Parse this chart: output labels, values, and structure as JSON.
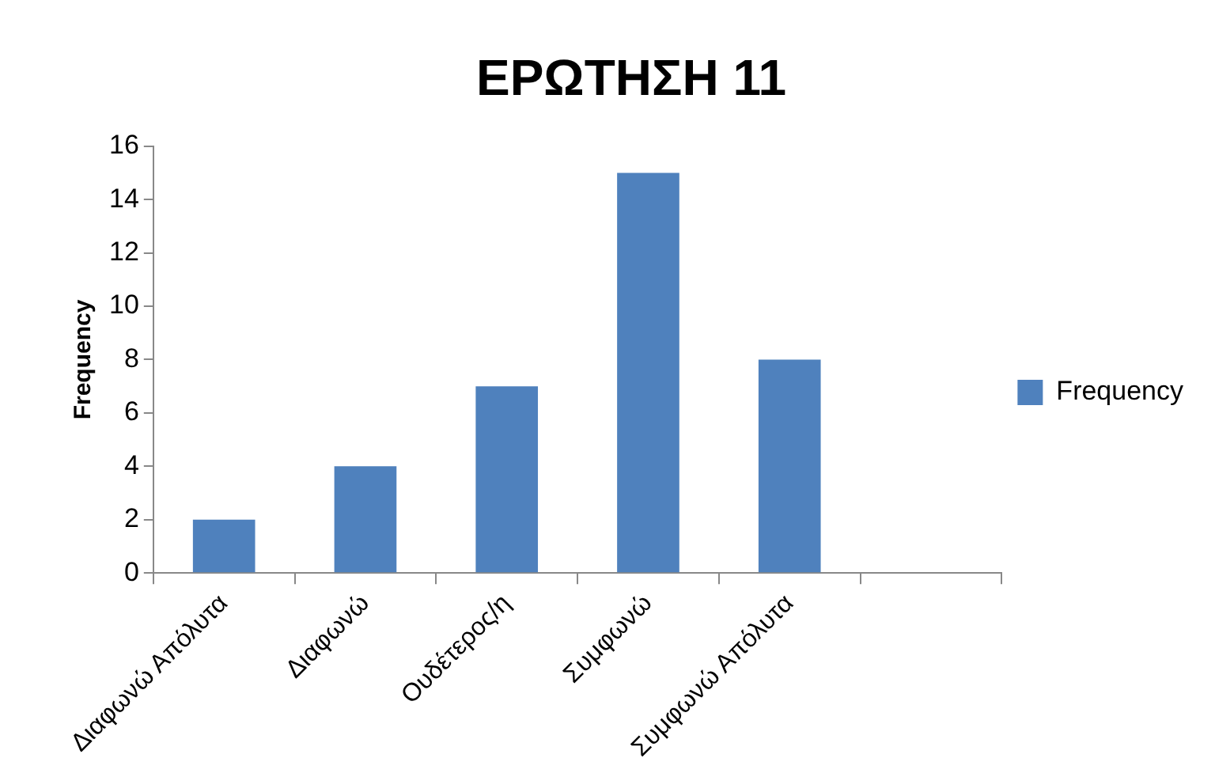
{
  "chart_data": {
    "type": "bar",
    "title": "ΕΡΩΤΗΣΗ 11",
    "ylabel": "Frequency",
    "categories": [
      "Διαφωνώ Απόλυτα",
      "Διαφωνώ",
      "Ουδέτερος/η",
      "Συμφωνώ",
      "Συμφωνώ Απόλυτα",
      null
    ],
    "series": [
      {
        "name": "Frequency",
        "color": "#4f81bd",
        "values": [
          2,
          4,
          7,
          15,
          8,
          null
        ]
      }
    ],
    "ylim": [
      0,
      16
    ],
    "yticks": [
      0,
      2,
      4,
      6,
      8,
      10,
      12,
      14,
      16
    ],
    "grid": false,
    "legend": "right"
  }
}
